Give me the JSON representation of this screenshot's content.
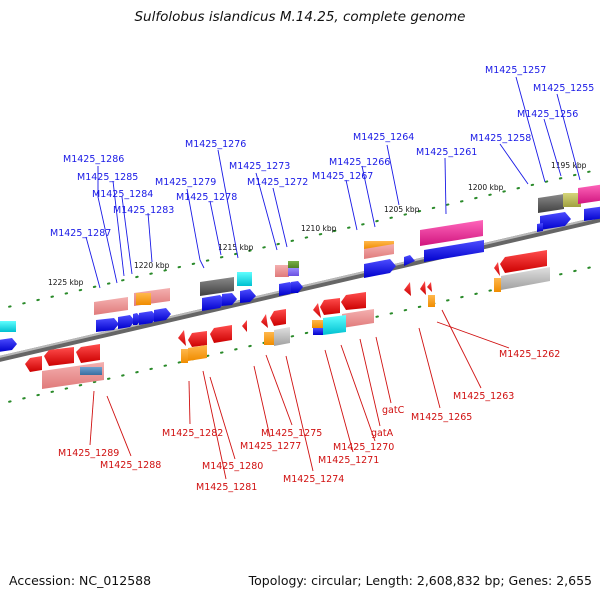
{
  "title": "Sulfolobus islandicus M.14.25, complete genome",
  "footer": {
    "accession": "Accession: NC_012588",
    "summary": "Topology: circular; Length: 2,608,832 bp; Genes: 2,655"
  },
  "colors": {
    "top_labels": "#1a1ae6",
    "bottom_labels": "#d01010",
    "backbone": "#888888",
    "tick": "#2a8a2a"
  },
  "ruler_ticks": [
    "1225 kbp",
    "1220 kbp",
    "1215 kbp",
    "1210 kbp",
    "1205 kbp",
    "1200 kbp",
    "1195 kbp"
  ],
  "top_strand_genes": [
    "M1425_1287",
    "M1425_1286",
    "M1425_1285",
    "M1425_1284",
    "M1425_1283",
    "M1425_1279",
    "M1425_1278",
    "M1425_1276",
    "M1425_1273",
    "M1425_1272",
    "M1425_1267",
    "M1425_1266",
    "M1425_1264",
    "M1425_1261",
    "M1425_1258",
    "M1425_1257",
    "M1425_1256",
    "M1425_1255"
  ],
  "bottom_strand_genes": [
    "M1425_1289",
    "M1425_1288",
    "M1425_1282",
    "M1425_1281",
    "M1425_1280",
    "M1425_1277",
    "M1425_1275",
    "M1425_1274",
    "M1425_1271",
    "M1425_1270",
    "gatA",
    "gatC",
    "M1425_1265",
    "M1425_1263",
    "M1425_1262"
  ]
}
